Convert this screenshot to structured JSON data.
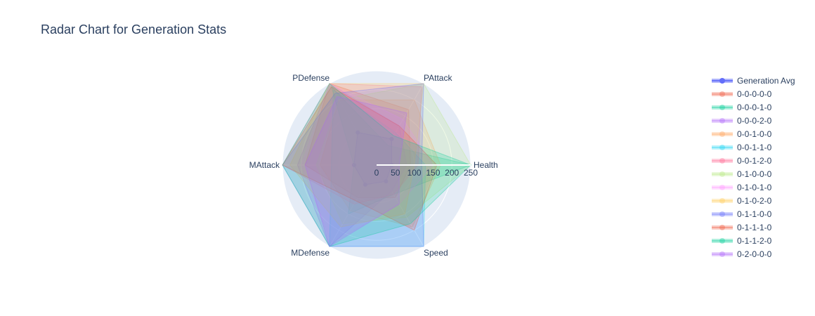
{
  "chart_data": {
    "type": "radar",
    "title": "Radar Chart for Generation Stats",
    "axes": [
      "Health",
      "PAttack",
      "PDefense",
      "MAttack",
      "MDefense",
      "Speed"
    ],
    "radial_range": [
      0,
      250
    ],
    "radial_ticks": [
      "0",
      "50",
      "100",
      "150",
      "200",
      "250"
    ],
    "legend_placement": "right",
    "series": [
      {
        "name": "Generation Avg",
        "color": "#636efa",
        "values": [
          40,
          80,
          100,
          60,
          60,
          50
        ],
        "fill_opacity": 0.3,
        "markers": true
      },
      {
        "name": "0-0-0-0-0",
        "color": "#ef553b",
        "values": [
          90,
          170,
          250,
          190,
          100,
          100
        ]
      },
      {
        "name": "0-0-0-1-0",
        "color": "#00cc96",
        "values": [
          250,
          60,
          240,
          60,
          150,
          90
        ]
      },
      {
        "name": "0-0-0-2-0",
        "color": "#ab63fa",
        "values": [
          80,
          120,
          250,
          210,
          250,
          80
        ]
      },
      {
        "name": "0-0-1-0-0",
        "color": "#ffa15a",
        "values": [
          170,
          200,
          200,
          150,
          140,
          190
        ]
      },
      {
        "name": "0-0-1-1-0",
        "color": "#19d3f3",
        "values": [
          130,
          100,
          230,
          120,
          250,
          250
        ]
      },
      {
        "name": "0-0-1-2-0",
        "color": "#ff6692",
        "values": [
          110,
          240,
          250,
          250,
          120,
          90
        ]
      },
      {
        "name": "0-1-0-0-0",
        "color": "#b6e880",
        "values": [
          250,
          250,
          200,
          160,
          180,
          160
        ]
      },
      {
        "name": "0-1-0-1-0",
        "color": "#ff97ff",
        "values": [
          150,
          140,
          270,
          200,
          240,
          120
        ]
      },
      {
        "name": "0-1-0-2-0",
        "color": "#fecb52",
        "values": [
          100,
          250,
          260,
          230,
          190,
          150
        ]
      },
      {
        "name": "0-1-1-0-0",
        "color": "#636efa",
        "values": [
          120,
          250,
          220,
          250,
          250,
          250
        ]
      },
      {
        "name": "0-1-1-1-0",
        "color": "#ef553b",
        "values": [
          160,
          120,
          240,
          250,
          110,
          200
        ]
      },
      {
        "name": "0-1-1-2-0",
        "color": "#00cc96",
        "values": [
          250,
          90,
          250,
          250,
          250,
          180
        ]
      },
      {
        "name": "0-2-0-0-0",
        "color": "#ab63fa",
        "values": [
          60,
          160,
          210,
          190,
          250,
          120
        ]
      }
    ]
  }
}
